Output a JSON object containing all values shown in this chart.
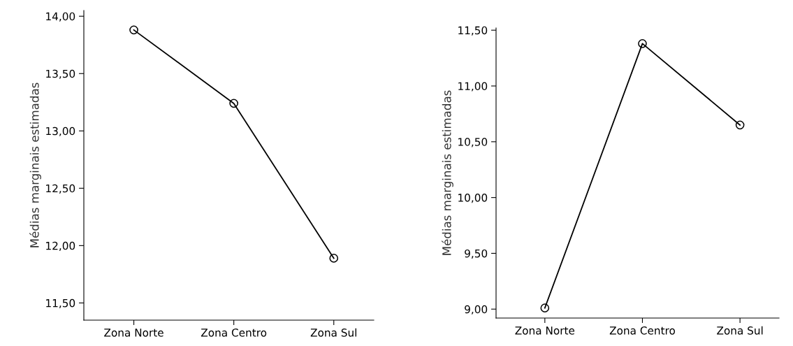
{
  "chart_data": [
    {
      "type": "line",
      "ylabel": "Médias marginais estimadas",
      "categories": [
        "Zona Norte",
        "Zona Centro",
        "Zona Sul"
      ],
      "series": [
        {
          "color": "#000000",
          "values": [
            13.88,
            13.24,
            11.89
          ]
        }
      ],
      "ylim": [
        11.35,
        14.05
      ],
      "yticks": [
        {
          "value": 11.5,
          "label": "11,50"
        },
        {
          "value": 12.0,
          "label": "12,00"
        },
        {
          "value": 12.5,
          "label": "12,50"
        },
        {
          "value": 13.0,
          "label": "13,00"
        },
        {
          "value": 13.5,
          "label": "13,50"
        },
        {
          "value": 14.0,
          "label": "14,00"
        }
      ],
      "marker": "circle",
      "line_style": "solid",
      "grid": false,
      "legend": false
    },
    {
      "type": "line",
      "ylabel": "Médias marginais estimadas",
      "categories": [
        "Zona Norte",
        "Zona Centro",
        "Zona Sul"
      ],
      "series": [
        {
          "color": "#000000",
          "values": [
            9.01,
            11.38,
            10.65
          ]
        }
      ],
      "ylim": [
        8.92,
        11.52
      ],
      "yticks": [
        {
          "value": 9.0,
          "label": "9,00"
        },
        {
          "value": 9.5,
          "label": "9,50"
        },
        {
          "value": 10.0,
          "label": "10,00"
        },
        {
          "value": 10.5,
          "label": "10,50"
        },
        {
          "value": 11.0,
          "label": "11,00"
        },
        {
          "value": 11.5,
          "label": "11,50"
        }
      ],
      "marker": "circle",
      "line_style": "solid",
      "grid": false,
      "legend": false
    }
  ]
}
